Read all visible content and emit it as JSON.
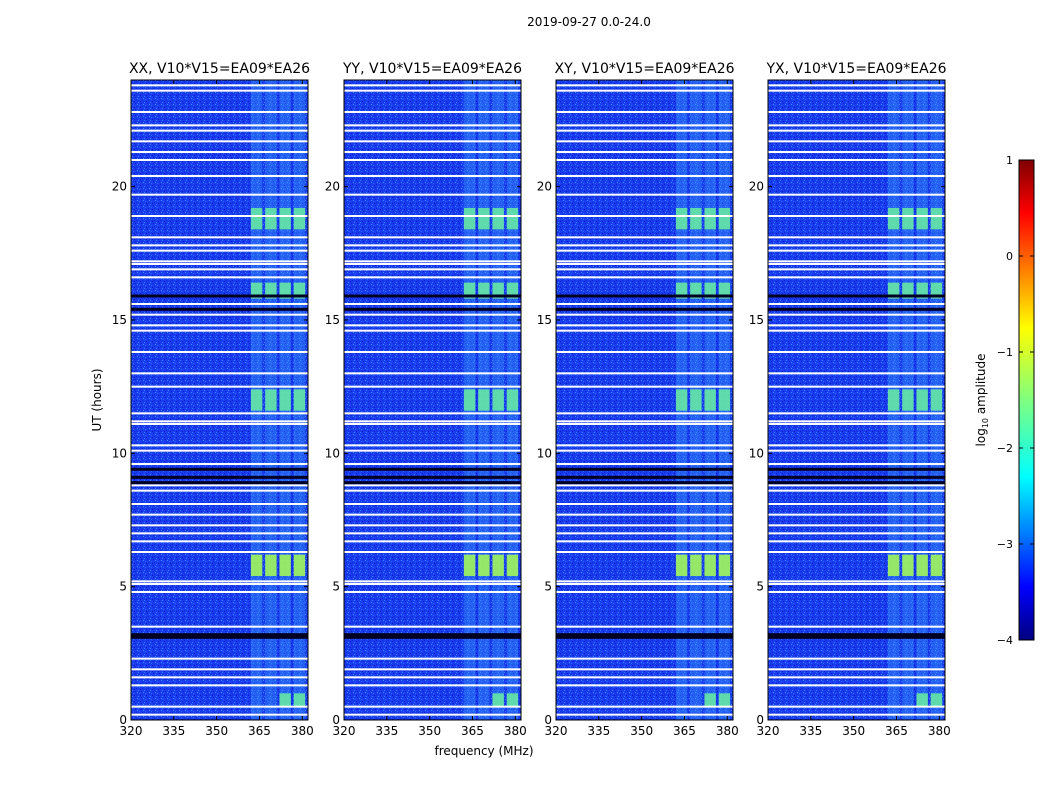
{
  "chart_data": {
    "type": "heatmap",
    "suptitle": "2019-09-27 0.0-24.0",
    "xlabel": "frequency (MHz)",
    "ylabel": "UT (hours)",
    "xlim": [
      320,
      382
    ],
    "ylim": [
      0,
      24
    ],
    "xticks": [
      320,
      335,
      350,
      365,
      380
    ],
    "yticks": [
      0,
      5,
      10,
      15,
      20
    ],
    "panels": [
      {
        "title": "XX, V10*V15=EA09*EA26",
        "polarization": "XX"
      },
      {
        "title": "YY, V10*V15=EA09*EA26",
        "polarization": "YY"
      },
      {
        "title": "XY, V10*V15=EA09*EA26",
        "polarization": "XY"
      },
      {
        "title": "YX, V10*V15=EA09*EA26",
        "polarization": "YX"
      }
    ],
    "rfi_bands_mhz": [
      [
        362,
        366
      ],
      [
        367,
        371
      ],
      [
        372,
        376
      ],
      [
        377,
        381
      ]
    ],
    "bright_intervals_ut": [
      [
        5.4,
        6.2
      ],
      [
        11.6,
        12.4
      ],
      [
        15.8,
        16.4
      ],
      [
        18.4,
        19.2
      ],
      [
        0.5,
        1.0
      ]
    ],
    "colorbar": {
      "label": "log10 amplitude",
      "label_main": "log",
      "label_sub": "10",
      "label_rest": " amplitude",
      "range": [
        -4,
        1
      ],
      "ticks": [
        -4,
        -3,
        -2,
        -1,
        0,
        1
      ],
      "tick_labels": [
        "−4",
        "−3",
        "−2",
        "−1",
        "0",
        "1"
      ],
      "colormap": "jet"
    }
  }
}
